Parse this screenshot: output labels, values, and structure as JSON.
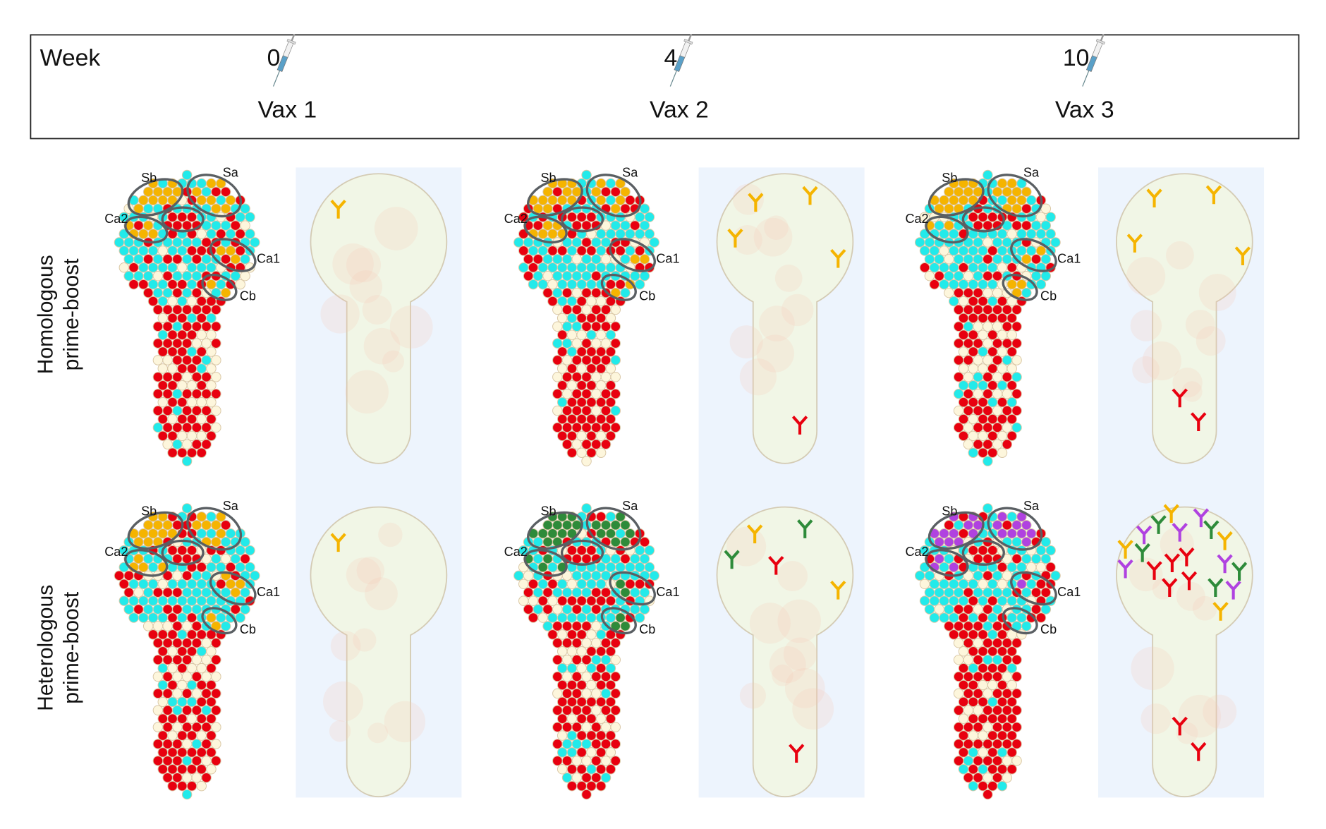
{
  "timeline": {
    "week_label": "Week",
    "doses": [
      {
        "week": "0",
        "label": "Vax 1",
        "icon": "syringe-icon"
      },
      {
        "week": "4",
        "label": "Vax 2",
        "icon": "syringe-icon"
      },
      {
        "week": "10",
        "label": "Vax 3",
        "icon": "syringe-icon"
      }
    ]
  },
  "rows": [
    {
      "label_line1": "Homologous",
      "label_line2": "prime-boost",
      "epitope_colors": [
        "yellow",
        "yellow",
        "yellow"
      ]
    },
    {
      "label_line1": "Heterologous",
      "label_line2": "prime-boost",
      "epitope_colors": [
        "yellow",
        "green",
        "purple"
      ]
    }
  ],
  "epitopes": {
    "sb": "Sb",
    "sa": "Sa",
    "ca2": "Ca2",
    "ca1": "Ca1",
    "cb": "Cb"
  },
  "colors": {
    "yellow": "#f5b400",
    "green": "#2e8b3a",
    "purple": "#b042e0",
    "red": "#e8000f",
    "cyan": "#22eaea",
    "cream": "#fdf6dc",
    "panel_bg": "#edf4fd",
    "ellipse": "#5a5f63"
  },
  "antibodies": [
    [
      [
        "yellow"
      ],
      [
        "yellow",
        "yellow",
        "yellow",
        "yellow",
        "red"
      ],
      [
        "yellow",
        "yellow",
        "yellow",
        "yellow",
        "red",
        "red"
      ]
    ],
    [
      [
        "yellow"
      ],
      [
        "yellow",
        "yellow",
        "green",
        "green",
        "red",
        "red"
      ],
      [
        "yellow",
        "green",
        "purple",
        "green",
        "purple",
        "purple",
        "yellow",
        "yellow",
        "green",
        "red",
        "red",
        "purple",
        "red",
        "purple",
        "green",
        "red",
        "red",
        "green",
        "purple",
        "yellow",
        "red",
        "red"
      ]
    ]
  ]
}
